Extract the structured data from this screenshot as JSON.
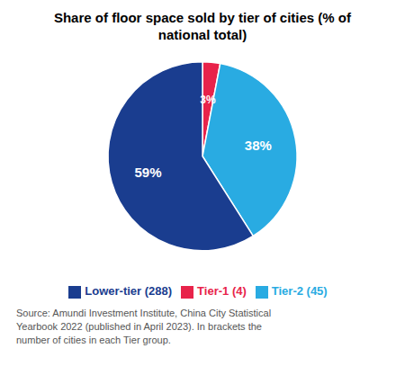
{
  "chart_data": {
    "type": "pie",
    "title": "Share of floor space sold by tier of cities (% of\nnational total)",
    "categories": [
      "Tier-1 (4)",
      "Tier-2 (45)",
      "Lower-tier (288)"
    ],
    "values": [
      3,
      38,
      59
    ],
    "value_labels": [
      "3%",
      "38%",
      "59%"
    ],
    "colors": [
      "#E8234A",
      "#29ABE2",
      "#1A3D8F"
    ],
    "data_labels": true,
    "legend": "bottom",
    "annotations": [
      "Source: Amundi Investment Institute, China City Statistical\nYearbook 2022 (published in April 2023). In brackets the\nnumber of cities in each Tier group."
    ]
  }
}
